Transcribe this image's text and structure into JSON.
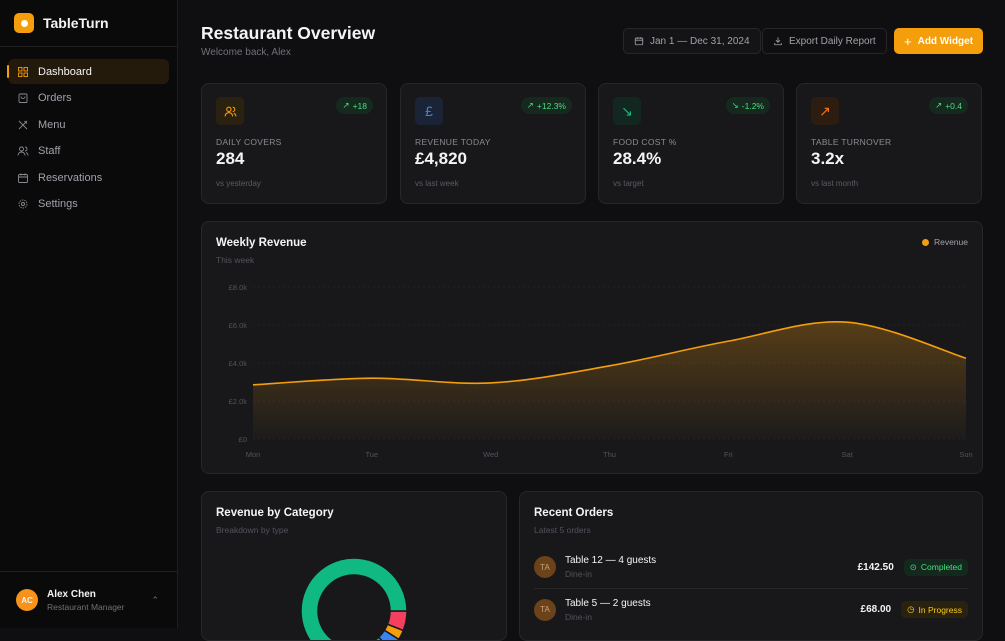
{
  "brand": {
    "name": "TableTurn"
  },
  "sidebar": {
    "items": [
      {
        "label": "Dashboard",
        "icon": "grid-icon"
      },
      {
        "label": "Orders",
        "icon": "bag-icon"
      },
      {
        "label": "Menu",
        "icon": "utensils-icon"
      },
      {
        "label": "Staff",
        "icon": "users-icon"
      },
      {
        "label": "Reservations",
        "icon": "calendar-icon"
      },
      {
        "label": "Settings",
        "icon": "gear-icon"
      }
    ],
    "active": "Dashboard"
  },
  "user": {
    "initials": "AC",
    "name": "Alex Chen",
    "role": "Restaurant Manager"
  },
  "header": {
    "title": "Restaurant Overview",
    "subtitle": "Welcome back, Alex",
    "date_range": "Jan 1 — Dec 31, 2024",
    "export_label": "Export Daily Report",
    "add_label": "Add Widget"
  },
  "kpis": [
    {
      "label": "DAILY COVERS",
      "value": "284",
      "delta": "+18",
      "foot": "vs yesterday",
      "icon": "users-icon",
      "color": "#f59e0b"
    },
    {
      "label": "REVENUE TODAY",
      "value": "£4,820",
      "delta": "+12.3%",
      "foot": "vs last week",
      "icon": "pound-icon",
      "color": "#3b82f6"
    },
    {
      "label": "FOOD COST %",
      "value": "28.4%",
      "delta": "-1.2%",
      "foot": "vs target",
      "icon": "trend-down-icon",
      "color": "#10b981"
    },
    {
      "label": "TABLE TURNOVER",
      "value": "3.2x",
      "delta": "+0.4",
      "foot": "vs last month",
      "icon": "trend-up-icon",
      "color": "#f97316"
    }
  ],
  "revenue_chart": {
    "title": "Weekly Revenue",
    "subtitle": "This week"
  },
  "chart_data": [
    {
      "type": "area",
      "title": "Weekly Revenue",
      "legend": [
        "Revenue"
      ],
      "legend_position": "top-right",
      "categories": [
        "Mon",
        "Tue",
        "Wed",
        "Thu",
        "Fri",
        "Sat",
        "Sun"
      ],
      "series": [
        {
          "name": "Revenue",
          "values": [
            2850,
            3200,
            2950,
            3850,
            5150,
            6150,
            4250
          ]
        }
      ],
      "yticks": [
        "£0",
        "£2.0k",
        "£4.0k",
        "£6.0k",
        "£8.0k"
      ],
      "ylim": [
        0,
        8000
      ],
      "color": "#f59e0b"
    },
    {
      "type": "pie",
      "title": "Revenue by Category",
      "subtitle": "Breakdown by type",
      "values": [
        0.06,
        0.03,
        0.04,
        0.87
      ],
      "colors": [
        "#f43f5e",
        "#f59e0b",
        "#3b82f6",
        "#10b981"
      ]
    }
  ],
  "category": {
    "title": "Revenue by Category",
    "subtitle": "Breakdown by type"
  },
  "orders": {
    "title": "Recent Orders",
    "subtitle": "Latest 5 orders",
    "items": [
      {
        "initials": "TA",
        "name": "Table 12 — 4 guests",
        "type": "Dine-in",
        "amount": "£142.50",
        "status": "Completed"
      },
      {
        "initials": "TA",
        "name": "Table 5 — 2 guests",
        "type": "Dine-in",
        "amount": "£68.00",
        "status": "In Progress"
      }
    ]
  }
}
